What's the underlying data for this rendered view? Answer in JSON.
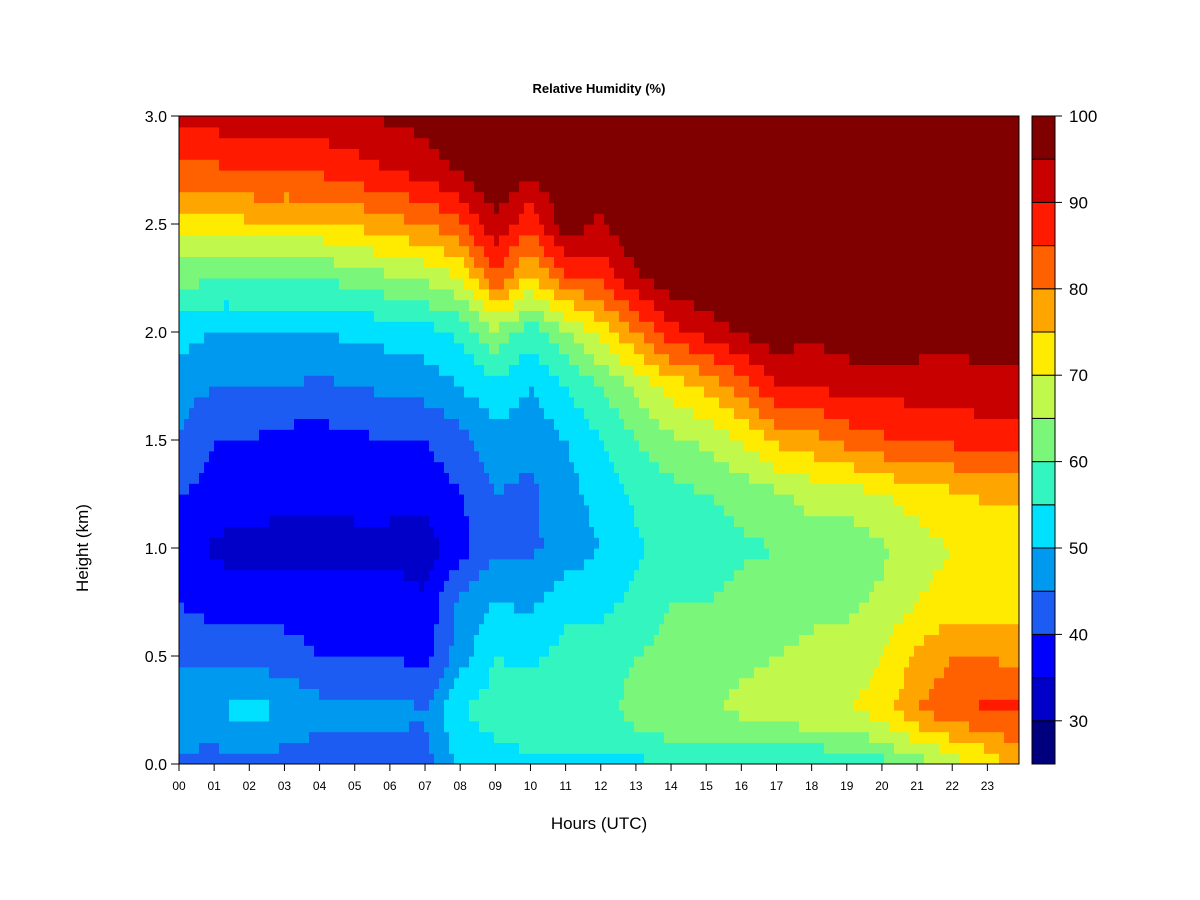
{
  "chart_data": {
    "type": "heatmap",
    "title": "Relative Humidity (%)",
    "xlabel": "Hours (UTC)",
    "ylabel": "Height (km)",
    "xlim": [
      0,
      23.9
    ],
    "ylim": [
      0.0,
      3.0
    ],
    "x_ticks": [
      "00",
      "01",
      "02",
      "03",
      "04",
      "05",
      "06",
      "07",
      "08",
      "09",
      "10",
      "11",
      "12",
      "13",
      "14",
      "15",
      "16",
      "17",
      "18",
      "19",
      "20",
      "21",
      "22",
      "23"
    ],
    "y_ticks": [
      "0.0",
      "0.5",
      "1.0",
      "1.5",
      "2.0",
      "2.5",
      "3.0"
    ],
    "colorbar": {
      "range": [
        25,
        100
      ],
      "ticks": [
        "30",
        "40",
        "50",
        "60",
        "70",
        "80",
        "90",
        "100"
      ],
      "levels": [
        25,
        30,
        35,
        40,
        45,
        50,
        55,
        60,
        65,
        70,
        75,
        80,
        85,
        90,
        95,
        100
      ],
      "colors": [
        "#00007f",
        "#0000c8",
        "#0000ff",
        "#1c5cf2",
        "#0099f0",
        "#00e0ff",
        "#33f5c0",
        "#7af77a",
        "#c0f84b",
        "#ffeb00",
        "#ffa500",
        "#ff6000",
        "#ff1a00",
        "#c80000",
        "#800000"
      ]
    },
    "hours": [
      0,
      1,
      2,
      3,
      4,
      5,
      6,
      7,
      8,
      9,
      10,
      11,
      12,
      13,
      14,
      15,
      16,
      17,
      18,
      19,
      20,
      21,
      22,
      23,
      23.9
    ],
    "heights_km": [
      0.0,
      0.05,
      0.25,
      0.5,
      0.75,
      1.0,
      1.25,
      1.5,
      1.75,
      2.0,
      2.25,
      2.5,
      2.75,
      3.0
    ],
    "values": [
      [
        40,
        40,
        42,
        40,
        40,
        40,
        40,
        42,
        52,
        50,
        48,
        52,
        50,
        52,
        55,
        55,
        55,
        55,
        55,
        55,
        58,
        62,
        68,
        72,
        78
      ],
      [
        45,
        44,
        46,
        44,
        43,
        43,
        43,
        44,
        52,
        54,
        55,
        56,
        55,
        57,
        58,
        58,
        58,
        58,
        58,
        60,
        62,
        66,
        70,
        74,
        78
      ],
      [
        48,
        50,
        52,
        50,
        47,
        47,
        47,
        45,
        55,
        57,
        58,
        60,
        58,
        62,
        64,
        64,
        66,
        68,
        70,
        70,
        72,
        80,
        84,
        86,
        86
      ],
      [
        44,
        43,
        43,
        42,
        40,
        40,
        40,
        38,
        48,
        55,
        54,
        57,
        57,
        60,
        62,
        64,
        64,
        65,
        66,
        67,
        70,
        76,
        80,
        80,
        78
      ],
      [
        40,
        38,
        38,
        38,
        38,
        38,
        38,
        36,
        46,
        50,
        49,
        53,
        54,
        56,
        60,
        60,
        62,
        62,
        64,
        64,
        66,
        70,
        72,
        72,
        72
      ],
      [
        38,
        34,
        33,
        33,
        33,
        33,
        33,
        32,
        38,
        44,
        44,
        47,
        50,
        54,
        57,
        56,
        59,
        60,
        62,
        62,
        64,
        68,
        70,
        70,
        70
      ],
      [
        40,
        38,
        38,
        36,
        36,
        37,
        37,
        37,
        40,
        45,
        44,
        48,
        52,
        56,
        58,
        60,
        62,
        64,
        67,
        67,
        70,
        72,
        74,
        76,
        76
      ],
      [
        45,
        40,
        40,
        38,
        38,
        39,
        40,
        40,
        43,
        48,
        46,
        50,
        55,
        60,
        64,
        66,
        70,
        76,
        78,
        82,
        84,
        86,
        86,
        88,
        88
      ],
      [
        47,
        45,
        45,
        45,
        44,
        45,
        46,
        47,
        50,
        54,
        50,
        55,
        60,
        66,
        72,
        76,
        82,
        90,
        90,
        92,
        92,
        92,
        92,
        93,
        93
      ],
      [
        52,
        50,
        50,
        50,
        50,
        51,
        52,
        53,
        56,
        64,
        57,
        64,
        72,
        80,
        88,
        92,
        96,
        98,
        96,
        98,
        98,
        98,
        97,
        98,
        98
      ],
      [
        62,
        60,
        60,
        60,
        60,
        62,
        64,
        66,
        70,
        84,
        74,
        84,
        86,
        94,
        98,
        100,
        100,
        100,
        100,
        100,
        100,
        100,
        100,
        100,
        100
      ],
      [
        72,
        72,
        74,
        74,
        74,
        76,
        78,
        80,
        84,
        94,
        86,
        98,
        94,
        100,
        100,
        100,
        100,
        100,
        100,
        100,
        100,
        100,
        100,
        100,
        100
      ],
      [
        84,
        84,
        86,
        86,
        86,
        88,
        90,
        92,
        96,
        100,
        96,
        100,
        98,
        100,
        100,
        100,
        100,
        100,
        100,
        100,
        100,
        100,
        100,
        100,
        100
      ],
      [
        92,
        92,
        94,
        92,
        93,
        94,
        96,
        97,
        100,
        100,
        98,
        100,
        99,
        100,
        100,
        100,
        100,
        100,
        100,
        100,
        100,
        100,
        100,
        100,
        100
      ]
    ]
  }
}
